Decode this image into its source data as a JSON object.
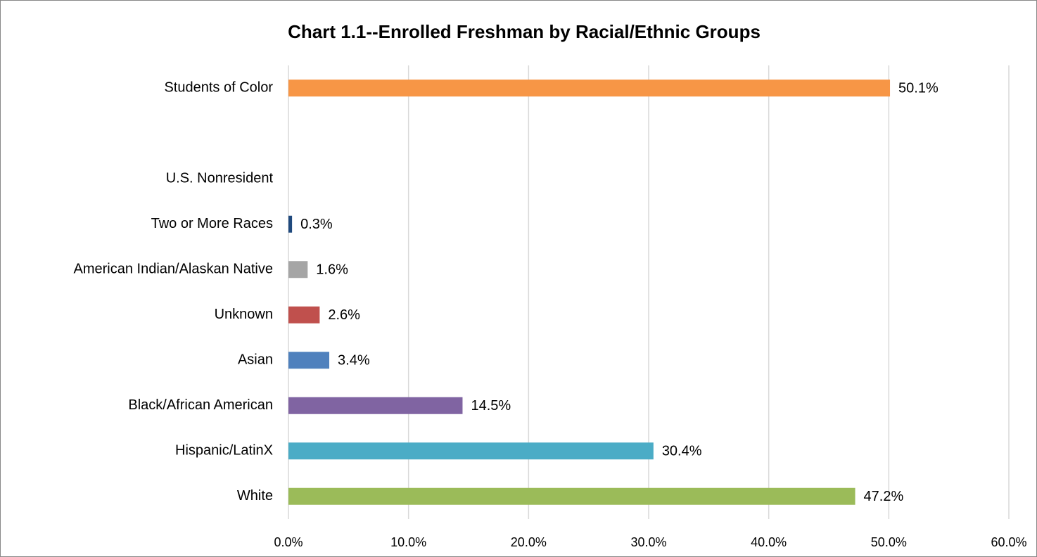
{
  "chart_data": {
    "type": "bar",
    "orientation": "horizontal",
    "title": "Chart 1.1--Enrolled Freshman by Racial/Ethnic Groups",
    "categories": [
      "Students of Color",
      null,
      "U.S. Nonresident",
      "Two or More Races",
      "American Indian/Alaskan Native",
      "Unknown",
      "Asian",
      "Black/African American",
      "Hispanic/LatinX",
      "White"
    ],
    "values": [
      50.1,
      null,
      null,
      0.3,
      1.6,
      2.6,
      3.4,
      14.5,
      30.4,
      47.2
    ],
    "value_labels": [
      "50.1%",
      null,
      null,
      "0.3%",
      "1.6%",
      "2.6%",
      "3.4%",
      "14.5%",
      "30.4%",
      "47.2%"
    ],
    "colors": [
      "#f79646",
      null,
      null,
      "#1f497d",
      "#a5a5a5",
      "#c0504d",
      "#4f81bd",
      "#8064a2",
      "#4bacc6",
      "#9bbb59"
    ],
    "xlim": [
      0,
      60
    ],
    "xticks": [
      {
        "value": 0,
        "label": "0.0%"
      },
      {
        "value": 10,
        "label": "10.0%"
      },
      {
        "value": 20,
        "label": "20.0%"
      },
      {
        "value": 30,
        "label": "30.0%"
      },
      {
        "value": 40,
        "label": "40.0%"
      },
      {
        "value": 50,
        "label": "50.0%"
      },
      {
        "value": 60,
        "label": "60.0%"
      }
    ],
    "grid": true
  }
}
